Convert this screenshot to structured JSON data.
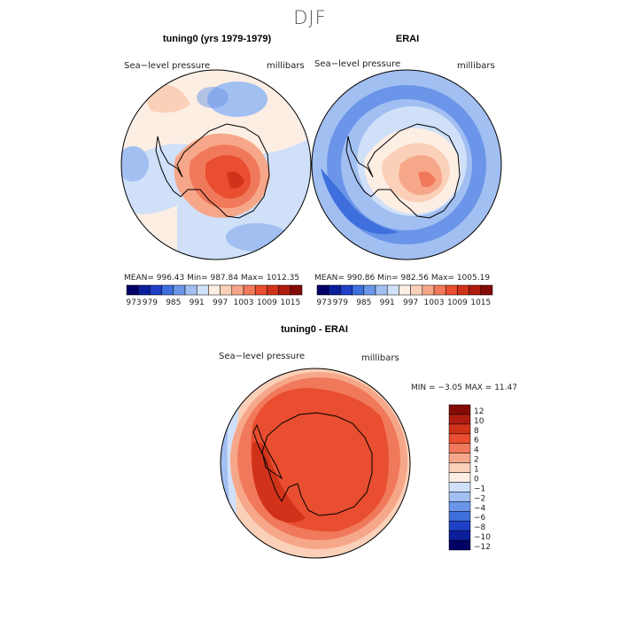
{
  "title": "DJF",
  "panels": [
    {
      "id": "model",
      "title": "tuning0 (yrs 1979-1979)",
      "left_label": "Sea−level pressure",
      "right_label": "millibars",
      "stats": "MEAN= 996.43   Min= 987.84   Max= 1012.35"
    },
    {
      "id": "obs",
      "title": "ERAI",
      "left_label": "Sea−level pressure",
      "right_label": "millibars",
      "stats": "MEAN= 990.86   Min= 982.56   Max= 1005.19"
    },
    {
      "id": "diff",
      "title": "tuning0 - ERAI",
      "left_label": "Sea−level pressure",
      "right_label": "millibars",
      "stats": "MIN =   −3.05  MAX =   11.47"
    }
  ],
  "chart_data": [
    {
      "type": "heatmap",
      "title": "tuning0 (yrs 1979-1979)",
      "field": "Sea-level pressure",
      "units": "millibars",
      "projection": "south polar stereographic",
      "mean": 996.43,
      "min": 987.84,
      "max": 1012.35,
      "colorbar": {
        "levels": [
          973,
          976,
          979,
          982,
          985,
          988,
          991,
          994,
          997,
          1000,
          1003,
          1006,
          1009,
          1012,
          1015
        ],
        "tick_labels": [
          "973",
          "979",
          "985",
          "991",
          "997",
          "1003",
          "1009",
          "1015"
        ],
        "colors": [
          "#000066",
          "#0b1e9c",
          "#1f3fc7",
          "#3f6fdc",
          "#6b95e8",
          "#a2bff2",
          "#cfe0f8",
          "#fdeee4",
          "#fbd0b8",
          "#f7a789",
          "#f1795b",
          "#e84e2f",
          "#d1321a",
          "#ad1c0e",
          "#830b06"
        ]
      }
    },
    {
      "type": "heatmap",
      "title": "ERAI",
      "field": "Sea-level pressure",
      "units": "millibars",
      "projection": "south polar stereographic",
      "mean": 990.86,
      "min": 982.56,
      "max": 1005.19,
      "colorbar": {
        "levels": [
          973,
          976,
          979,
          982,
          985,
          988,
          991,
          994,
          997,
          1000,
          1003,
          1006,
          1009,
          1012,
          1015
        ],
        "tick_labels": [
          "973",
          "979",
          "985",
          "991",
          "997",
          "1003",
          "1009",
          "1015"
        ],
        "colors": [
          "#000066",
          "#0b1e9c",
          "#1f3fc7",
          "#3f6fdc",
          "#6b95e8",
          "#a2bff2",
          "#cfe0f8",
          "#fdeee4",
          "#fbd0b8",
          "#f7a789",
          "#f1795b",
          "#e84e2f",
          "#d1321a",
          "#ad1c0e",
          "#830b06"
        ]
      }
    },
    {
      "type": "heatmap",
      "title": "tuning0 - ERAI",
      "field": "Sea-level pressure",
      "units": "millibars",
      "projection": "south polar stereographic",
      "min": -3.05,
      "max": 11.47,
      "colorbar": {
        "levels": [
          12,
          10,
          8,
          6,
          4,
          2,
          1,
          0,
          -1,
          -2,
          -4,
          -6,
          -8,
          -10,
          -12
        ],
        "tick_labels": [
          "12",
          "10",
          "8",
          "6",
          "4",
          "2",
          "1",
          "0",
          "−1",
          "−2",
          "−4",
          "−6",
          "−8",
          "−10",
          "−12"
        ],
        "colors": [
          "#830b06",
          "#ad1c0e",
          "#d1321a",
          "#e84e2f",
          "#f1795b",
          "#f7a789",
          "#fbd0b8",
          "#fdeee4",
          "#cfe0f8",
          "#a2bff2",
          "#6b95e8",
          "#3f6fdc",
          "#1f3fc7",
          "#0b1e9c",
          "#000066"
        ]
      }
    }
  ]
}
